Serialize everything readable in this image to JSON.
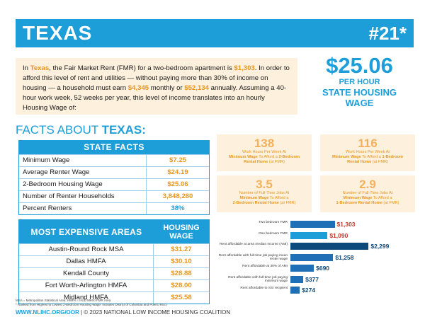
{
  "header": {
    "state": "TEXAS",
    "rank": "#21*"
  },
  "intro": {
    "p1": "In ",
    "state": "Texas",
    "p2": ", the Fair Market Rent (FMR) for a two-bedroom apartment is ",
    "fmr": "$1,303",
    "p3": ". In order to afford this level of rent and utilities — without paying more than 30% of income on housing — a household must earn ",
    "monthly": "$4,345",
    "p4": " monthly or ",
    "annual": "$52,134",
    "p5": " annually. Assuming a 40-hour work week, 52 weeks per year, this level of income translates into an hourly Housing Wage of:"
  },
  "housing_wage": {
    "amount": "$25.06",
    "per": "PER HOUR",
    "label1": "STATE HOUSING",
    "label2": "WAGE"
  },
  "facts_title": {
    "prefix": "FACTS ABOUT ",
    "state": "TEXAS:"
  },
  "state_facts": {
    "header": "STATE FACTS",
    "rows": [
      {
        "label": "Minimum Wage",
        "value": "$7.25"
      },
      {
        "label": "Average Renter Wage",
        "value": "$24.19"
      },
      {
        "label": "2-Bedroom Housing Wage",
        "value": "$25.06"
      },
      {
        "label": "Number of Renter Households",
        "value": "3,848,280"
      },
      {
        "label": "Percent Renters",
        "value": "38%"
      }
    ]
  },
  "most_expensive": {
    "header": "MOST EXPENSIVE AREAS",
    "header_right1": "HOUSING",
    "header_right2": "WAGE",
    "rows": [
      {
        "area": "Austin-Round Rock MSA",
        "wage": "$31.27"
      },
      {
        "area": "Dallas HMFA",
        "wage": "$30.10"
      },
      {
        "area": "Kendall County",
        "wage": "$28.88"
      },
      {
        "area": "Fort Worth-Arlington HMFA",
        "wage": "$28.00"
      },
      {
        "area": "Midland HMFA",
        "wage": "$25.58"
      }
    ]
  },
  "cards": [
    {
      "number": "138",
      "l1": "Work Hours Per Week At",
      "l2a": "Minimum Wage",
      "l2b": " To Afford a ",
      "l2c": "2-Bedroom",
      "l3": "Rental Home",
      "l3b": " (at FMR)"
    },
    {
      "number": "116",
      "l1": "Work Hours Per Week At",
      "l2a": "Minimum Wage",
      "l2b": " To Afford a ",
      "l2c": "1-Bedroom",
      "l3": "Rental Home",
      "l3b": " (at FMR)"
    },
    {
      "number": "3.5",
      "l1": "Number of Full-Time Jobs At",
      "l2a": "Minimum Wage",
      "l2b": " To Afford a",
      "l2c": "",
      "l3": "2-Bedroom Rental Home",
      "l3b": " (at FMR)"
    },
    {
      "number": "2.9",
      "l1": "Number of Full-Time Jobs At",
      "l2a": "Minimum Wage",
      "l2b": " To Afford a",
      "l2c": "",
      "l3": "1-Bedroom Rental Home",
      "l3b": " (at FMR)"
    }
  ],
  "chart_data": {
    "type": "bar",
    "orientation": "horizontal",
    "categories": [
      "Two bedroom FMR",
      "One bedroom FMR",
      "Rent affordable at area median income (AMI)",
      "Rent affordable with full-time job paying mean renter wage",
      "Rent affordable at 30% of AMI",
      "Rent affordable with full-time job paying minimum wage",
      "Rent affordable to SSI recipient"
    ],
    "values": [
      1303,
      1090,
      2299,
      1258,
      690,
      377,
      274
    ],
    "value_labels": [
      "$1,303",
      "$1,090",
      "$2,299",
      "$1,258",
      "$690",
      "$377",
      "$274"
    ],
    "colors": [
      "#1e6fb5",
      "#1e9ed8",
      "#0d4a7c",
      "#1e6fb5",
      "#1e6fb5",
      "#1e6fb5",
      "#1e6fb5"
    ],
    "xlim": [
      0,
      2500
    ]
  },
  "footnotes": {
    "line1": "MSA = Metropolitan Statistical Area; HMFA = HUD Metro FMR Area.",
    "line2": "* Ranked from Highest to Lowest 2-Bedroom Housing Wage. Includes District of Columbia and Puerto Rico."
  },
  "footer": {
    "url": "WWW.NLIHC.ORG/OOR",
    "rest": " | © 2023 NATIONAL LOW INCOME HOUSING COALITION"
  },
  "colors": {
    "primary": "#1e9ed8",
    "accent": "#e8961f",
    "cream": "#fdf0dc"
  }
}
